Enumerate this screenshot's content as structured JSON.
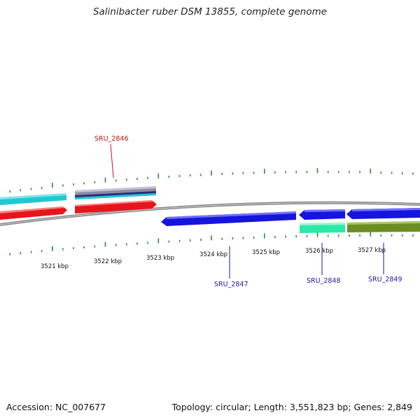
{
  "title": "Salinibacter ruber DSM 13855, complete genome",
  "footer": {
    "accession": "Accession: NC_007677",
    "summary": "Topology: circular; Length: 3,551,823 bp; Genes: 2,849"
  },
  "colors": {
    "forward_cds": "#e8141c",
    "reverse_cds": "#1515dd",
    "cyan_feature": "#1fc9d3",
    "mint_feature": "#2ee8a8",
    "olive_feature": "#6b8e23",
    "grey_feature": "#8d8aa3",
    "backbone": "#8a8a8a",
    "ticks": "#2e8b2e",
    "label_forward": "#cc1111",
    "label_reverse": "#1a1aaa"
  },
  "scale_labels": [
    "3521 kbp",
    "3522 kbp",
    "3523 kbp",
    "3524 kbp",
    "3525 kbp",
    "3526 kbp",
    "3527 kbp"
  ],
  "gene_labels": [
    {
      "name": "SRU_2846",
      "strand": "forward"
    },
    {
      "name": "SRU_2847",
      "strand": "reverse"
    },
    {
      "name": "SRU_2848",
      "strand": "reverse"
    },
    {
      "name": "SRU_2849",
      "strand": "reverse"
    }
  ]
}
